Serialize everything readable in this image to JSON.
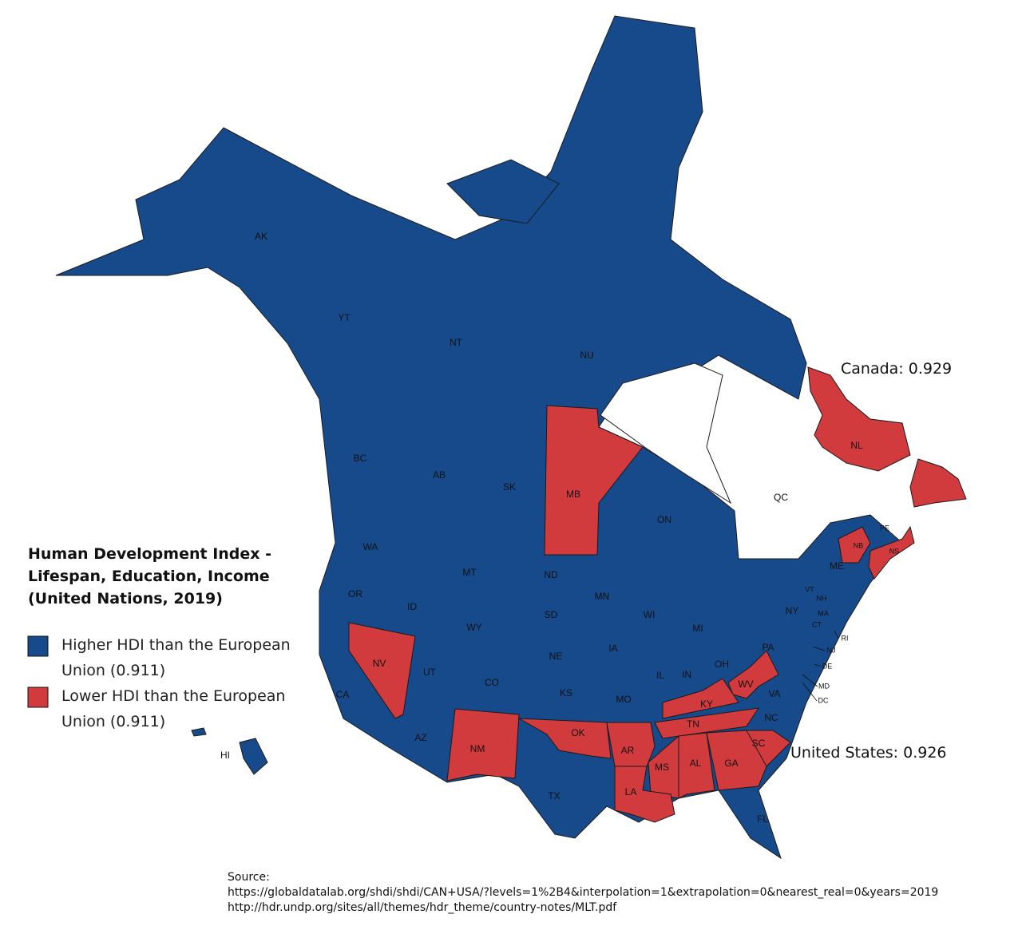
{
  "title_lines": [
    "Human Development Index -",
    "Lifespan, Education, Income",
    "(United Nations, 2019)"
  ],
  "legend": [
    {
      "color": "#174a8b",
      "lines": [
        "Higher HDI than the European",
        "Union (0.911)"
      ]
    },
    {
      "color": "#d13b3e",
      "lines": [
        "Lower HDI than the European",
        "Union (0.911)"
      ]
    }
  ],
  "annotations": [
    "Canada: 0.929",
    "United States: 0.926"
  ],
  "source_lines": [
    "Source:",
    "https://globaldatalab.org/shdi/shdi/CAN+USA/?levels=1%2B4&interpolation=1&extrapolation=0&nearest_real=0&years=2019",
    "http://hdr.undp.org/sites/all/themes/hdr_theme/country-notes/MLT.pdf"
  ],
  "regions": [
    {
      "label": "AK",
      "color": "#174a8b"
    },
    {
      "label": "YT",
      "color": "#174a8b"
    },
    {
      "label": "NT",
      "color": "#174a8b"
    },
    {
      "label": "NU",
      "color": "#174a8b"
    },
    {
      "label": "BC",
      "color": "#174a8b"
    },
    {
      "label": "AB",
      "color": "#174a8b"
    },
    {
      "label": "SK",
      "color": "#174a8b"
    },
    {
      "label": "MB",
      "color": "#d13b3e"
    },
    {
      "label": "ON",
      "color": "#174a8b"
    },
    {
      "label": "QC",
      "color": "#174a8b"
    },
    {
      "label": "NL",
      "color": "#d13b3e"
    },
    {
      "label": "PE",
      "color": "#174a8b"
    },
    {
      "label": "NB",
      "color": "#d13b3e"
    },
    {
      "label": "NS",
      "color": "#d13b3e"
    },
    {
      "label": "WA",
      "color": "#174a8b"
    },
    {
      "label": "OR",
      "color": "#174a8b"
    },
    {
      "label": "ID",
      "color": "#174a8b"
    },
    {
      "label": "MT",
      "color": "#174a8b"
    },
    {
      "label": "WY",
      "color": "#174a8b"
    },
    {
      "label": "ND",
      "color": "#174a8b"
    },
    {
      "label": "SD",
      "color": "#174a8b"
    },
    {
      "label": "NE",
      "color": "#174a8b"
    },
    {
      "label": "MN",
      "color": "#174a8b"
    },
    {
      "label": "WI",
      "color": "#174a8b"
    },
    {
      "label": "MI",
      "color": "#174a8b"
    },
    {
      "label": "IA",
      "color": "#174a8b"
    },
    {
      "label": "IL",
      "color": "#174a8b"
    },
    {
      "label": "IN",
      "color": "#174a8b"
    },
    {
      "label": "OH",
      "color": "#174a8b"
    },
    {
      "label": "PA",
      "color": "#174a8b"
    },
    {
      "label": "NY",
      "color": "#174a8b"
    },
    {
      "label": "VT",
      "color": "#174a8b"
    },
    {
      "label": "NH",
      "color": "#174a8b"
    },
    {
      "label": "ME",
      "color": "#174a8b"
    },
    {
      "label": "MA",
      "color": "#174a8b"
    },
    {
      "label": "CT",
      "color": "#174a8b"
    },
    {
      "label": "RI",
      "color": "#174a8b"
    },
    {
      "label": "NJ",
      "color": "#174a8b"
    },
    {
      "label": "DE",
      "color": "#174a8b"
    },
    {
      "label": "MD",
      "color": "#174a8b"
    },
    {
      "label": "DC",
      "color": "#174a8b"
    },
    {
      "label": "WV",
      "color": "#d13b3e"
    },
    {
      "label": "VA",
      "color": "#174a8b"
    },
    {
      "label": "KY",
      "color": "#d13b3e"
    },
    {
      "label": "TN",
      "color": "#d13b3e"
    },
    {
      "label": "NC",
      "color": "#174a8b"
    },
    {
      "label": "SC",
      "color": "#d13b3e"
    },
    {
      "label": "GA",
      "color": "#d13b3e"
    },
    {
      "label": "AL",
      "color": "#d13b3e"
    },
    {
      "label": "MS",
      "color": "#d13b3e"
    },
    {
      "label": "LA",
      "color": "#d13b3e"
    },
    {
      "label": "AR",
      "color": "#d13b3e"
    },
    {
      "label": "OK",
      "color": "#d13b3e"
    },
    {
      "label": "KS",
      "color": "#174a8b"
    },
    {
      "label": "MO",
      "color": "#174a8b"
    },
    {
      "label": "CO",
      "color": "#174a8b"
    },
    {
      "label": "UT",
      "color": "#174a8b"
    },
    {
      "label": "NV",
      "color": "#d13b3e"
    },
    {
      "label": "CA",
      "color": "#174a8b"
    },
    {
      "label": "AZ",
      "color": "#174a8b"
    },
    {
      "label": "NM",
      "color": "#d13b3e"
    },
    {
      "label": "TX",
      "color": "#174a8b"
    },
    {
      "label": "FL",
      "color": "#174a8b"
    },
    {
      "label": "HI",
      "color": "#174a8b"
    }
  ]
}
